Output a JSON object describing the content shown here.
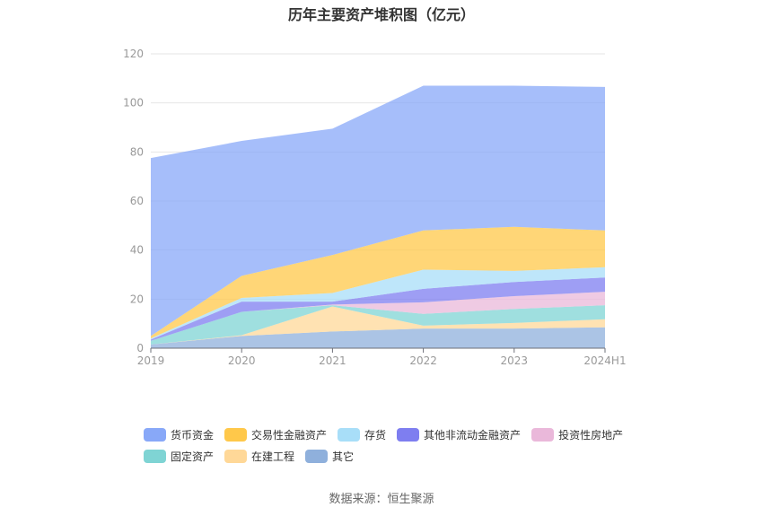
{
  "chart_data": {
    "type": "area",
    "stacked": true,
    "title": "历年主要资产堆积图（亿元）",
    "categories": [
      "2019",
      "2020",
      "2021",
      "2022",
      "2023",
      "2024H1"
    ],
    "ylim": [
      0,
      120
    ],
    "yticks": [
      0,
      20,
      40,
      60,
      80,
      100,
      120
    ],
    "grid": true,
    "legend_position": "bottom",
    "series": [
      {
        "name": "其它",
        "color": "#8fb0dc",
        "values": [
          1.5,
          5.0,
          6.8,
          8.0,
          8.0,
          8.5
        ]
      },
      {
        "name": "在建工程",
        "color": "#ffd898",
        "values": [
          0.0,
          0.3,
          10.2,
          1.2,
          2.3,
          3.3
        ]
      },
      {
        "name": "固定资产",
        "color": "#7fd4d4",
        "values": [
          1.5,
          9.5,
          0.5,
          4.8,
          5.7,
          5.7
        ]
      },
      {
        "name": "投资性房地产",
        "color": "#eab8da",
        "values": [
          0.0,
          0.0,
          0.3,
          4.7,
          5.2,
          5.5
        ]
      },
      {
        "name": "其他非流动金融资产",
        "color": "#7e7ef0",
        "values": [
          0.5,
          4.2,
          1.2,
          5.5,
          5.8,
          5.8
        ]
      },
      {
        "name": "存货",
        "color": "#a8def8",
        "values": [
          0.5,
          1.5,
          3.5,
          7.8,
          4.5,
          4.2
        ]
      },
      {
        "name": "交易性金融资产",
        "color": "#ffc84a",
        "values": [
          1.0,
          9.0,
          15.5,
          16.0,
          18.0,
          15.0
        ]
      },
      {
        "name": "货币资金",
        "color": "#88a8f8",
        "values": [
          72.5,
          55.0,
          51.5,
          59.0,
          57.5,
          58.5
        ]
      }
    ]
  },
  "legend": {
    "row1": [
      {
        "name": "货币资金",
        "color": "#88a8f8"
      },
      {
        "name": "交易性金融资产",
        "color": "#ffc84a"
      },
      {
        "name": "存货",
        "color": "#a8def8"
      },
      {
        "name": "其他非流动金融资产",
        "color": "#7e7ef0"
      },
      {
        "name": "投资性房地产",
        "color": "#eab8da"
      }
    ],
    "row2": [
      {
        "name": "固定资产",
        "color": "#7fd4d4"
      },
      {
        "name": "在建工程",
        "color": "#ffd898"
      },
      {
        "name": "其它",
        "color": "#8fb0dc"
      }
    ]
  },
  "source": "数据来源：恒生聚源"
}
